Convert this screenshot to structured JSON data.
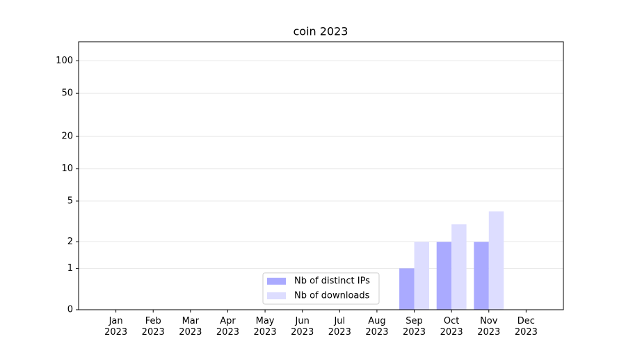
{
  "chart_data": {
    "type": "bar",
    "title": "coin 2023",
    "categories": [
      "Jan 2023",
      "Feb 2023",
      "Mar 2023",
      "Apr 2023",
      "May 2023",
      "Jun 2023",
      "Jul 2023",
      "Aug 2023",
      "Sep 2023",
      "Oct 2023",
      "Nov 2023",
      "Dec 2023"
    ],
    "series": [
      {
        "name": "Nb of distinct IPs",
        "color": "#aaaaff",
        "values": [
          0,
          0,
          0,
          0,
          0,
          0,
          0,
          0,
          1,
          2,
          2,
          0
        ]
      },
      {
        "name": "Nb of downloads",
        "color": "#ddddff",
        "values": [
          0,
          0,
          0,
          0,
          0,
          0,
          0,
          0,
          2,
          3,
          4,
          0
        ]
      }
    ],
    "yscale": "asinh",
    "ylim": [
      0,
      150
    ],
    "yticks": [
      0,
      1,
      2,
      5,
      10,
      20,
      50,
      100
    ],
    "grid": true,
    "legend": "lower center"
  }
}
